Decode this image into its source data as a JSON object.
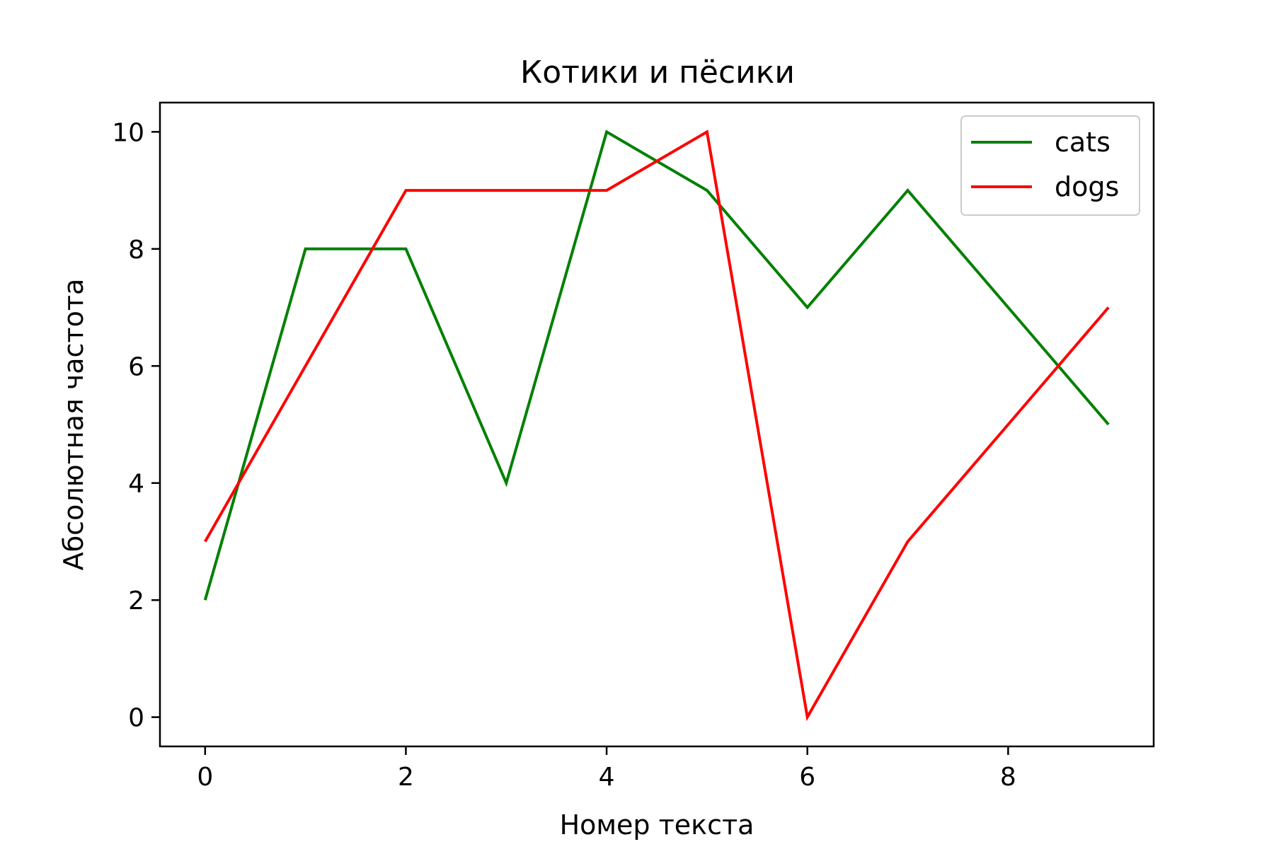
{
  "chart_data": {
    "type": "line",
    "title": "Котики и пёсики",
    "xlabel": "Номер текста",
    "ylabel": "Абсолютная частота",
    "x": [
      0,
      1,
      2,
      3,
      4,
      5,
      6,
      7,
      8,
      9
    ],
    "xlim": [
      -0.45,
      9.45
    ],
    "ylim": [
      -0.5,
      10.5
    ],
    "xticks": [
      0,
      2,
      4,
      6,
      8
    ],
    "yticks": [
      0,
      2,
      4,
      6,
      8,
      10
    ],
    "grid": false,
    "legend_position": "top-right",
    "series": [
      {
        "name": "cats",
        "color": "#008000",
        "values": [
          2,
          8,
          8,
          4,
          10,
          9,
          7,
          9,
          7,
          5
        ]
      },
      {
        "name": "dogs",
        "color": "#ff0000",
        "values": [
          3,
          6,
          9,
          9,
          9,
          10,
          0,
          3,
          5,
          7
        ]
      }
    ]
  }
}
